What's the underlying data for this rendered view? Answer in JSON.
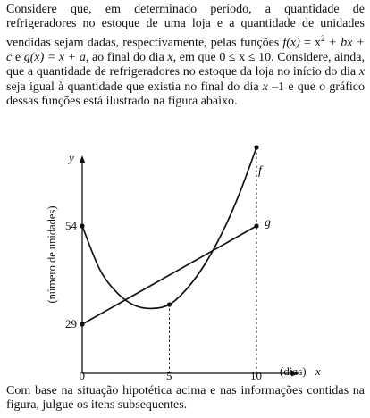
{
  "intro": {
    "s1": "Considere que, em determinado período, a quantidade de refrigeradores no estoque de uma loja e a quantidade de unidades vendidas sejam dadas, respectivamente, pelas funções",
    "f_lhs": "f(x)",
    "f_eq": " = x",
    "f_pow": "2",
    "f_rest": " + bx + c",
    "and1": " e ",
    "g_lhs": "g(x)",
    "g_rest": " = x + a",
    "s2": ", ao final do dia ",
    "x1": "x",
    "s3": ", em que ",
    "domain": "0 ≤ x ≤ 10",
    "s4": ". Considere, ainda, que a quantidade de refrigeradores no estoque da loja no início do dia ",
    "x2": "x",
    "s5": " seja igual à quantidade que existia no final do dia ",
    "x3": "x",
    "s6": " –1 e que o gráfico dessas funções está ilustrado na figura abaixo."
  },
  "closing": "Com base na situação hipotética acima e nas informações contidas na figura, julgue os itens subsequentes.",
  "chart_data": {
    "type": "line",
    "xlabel_unit": "(dias)",
    "xlabel_var": "x",
    "ylabel": "(número de unidades)",
    "yaxis_var": "y",
    "xticks": [
      "0",
      "5",
      "10"
    ],
    "yticks": [
      "29",
      "54"
    ],
    "series": [
      {
        "name": "f",
        "points": [
          [
            0,
            54
          ],
          [
            1,
            43
          ],
          [
            2,
            37
          ],
          [
            3,
            33.8
          ],
          [
            4,
            33
          ],
          [
            5,
            34
          ],
          [
            6,
            38
          ],
          [
            7,
            44
          ],
          [
            8,
            52
          ],
          [
            9,
            62
          ],
          [
            10,
            74
          ]
        ],
        "color": "#111111"
      },
      {
        "name": "g",
        "points": [
          [
            0,
            29
          ],
          [
            10,
            54
          ]
        ],
        "color": "#111111"
      }
    ],
    "marked_points": [
      [
        0,
        54
      ],
      [
        0,
        29
      ],
      [
        5,
        34
      ],
      [
        10,
        74
      ],
      [
        10,
        54
      ]
    ],
    "guide_lines_x": [
      5,
      10
    ]
  }
}
